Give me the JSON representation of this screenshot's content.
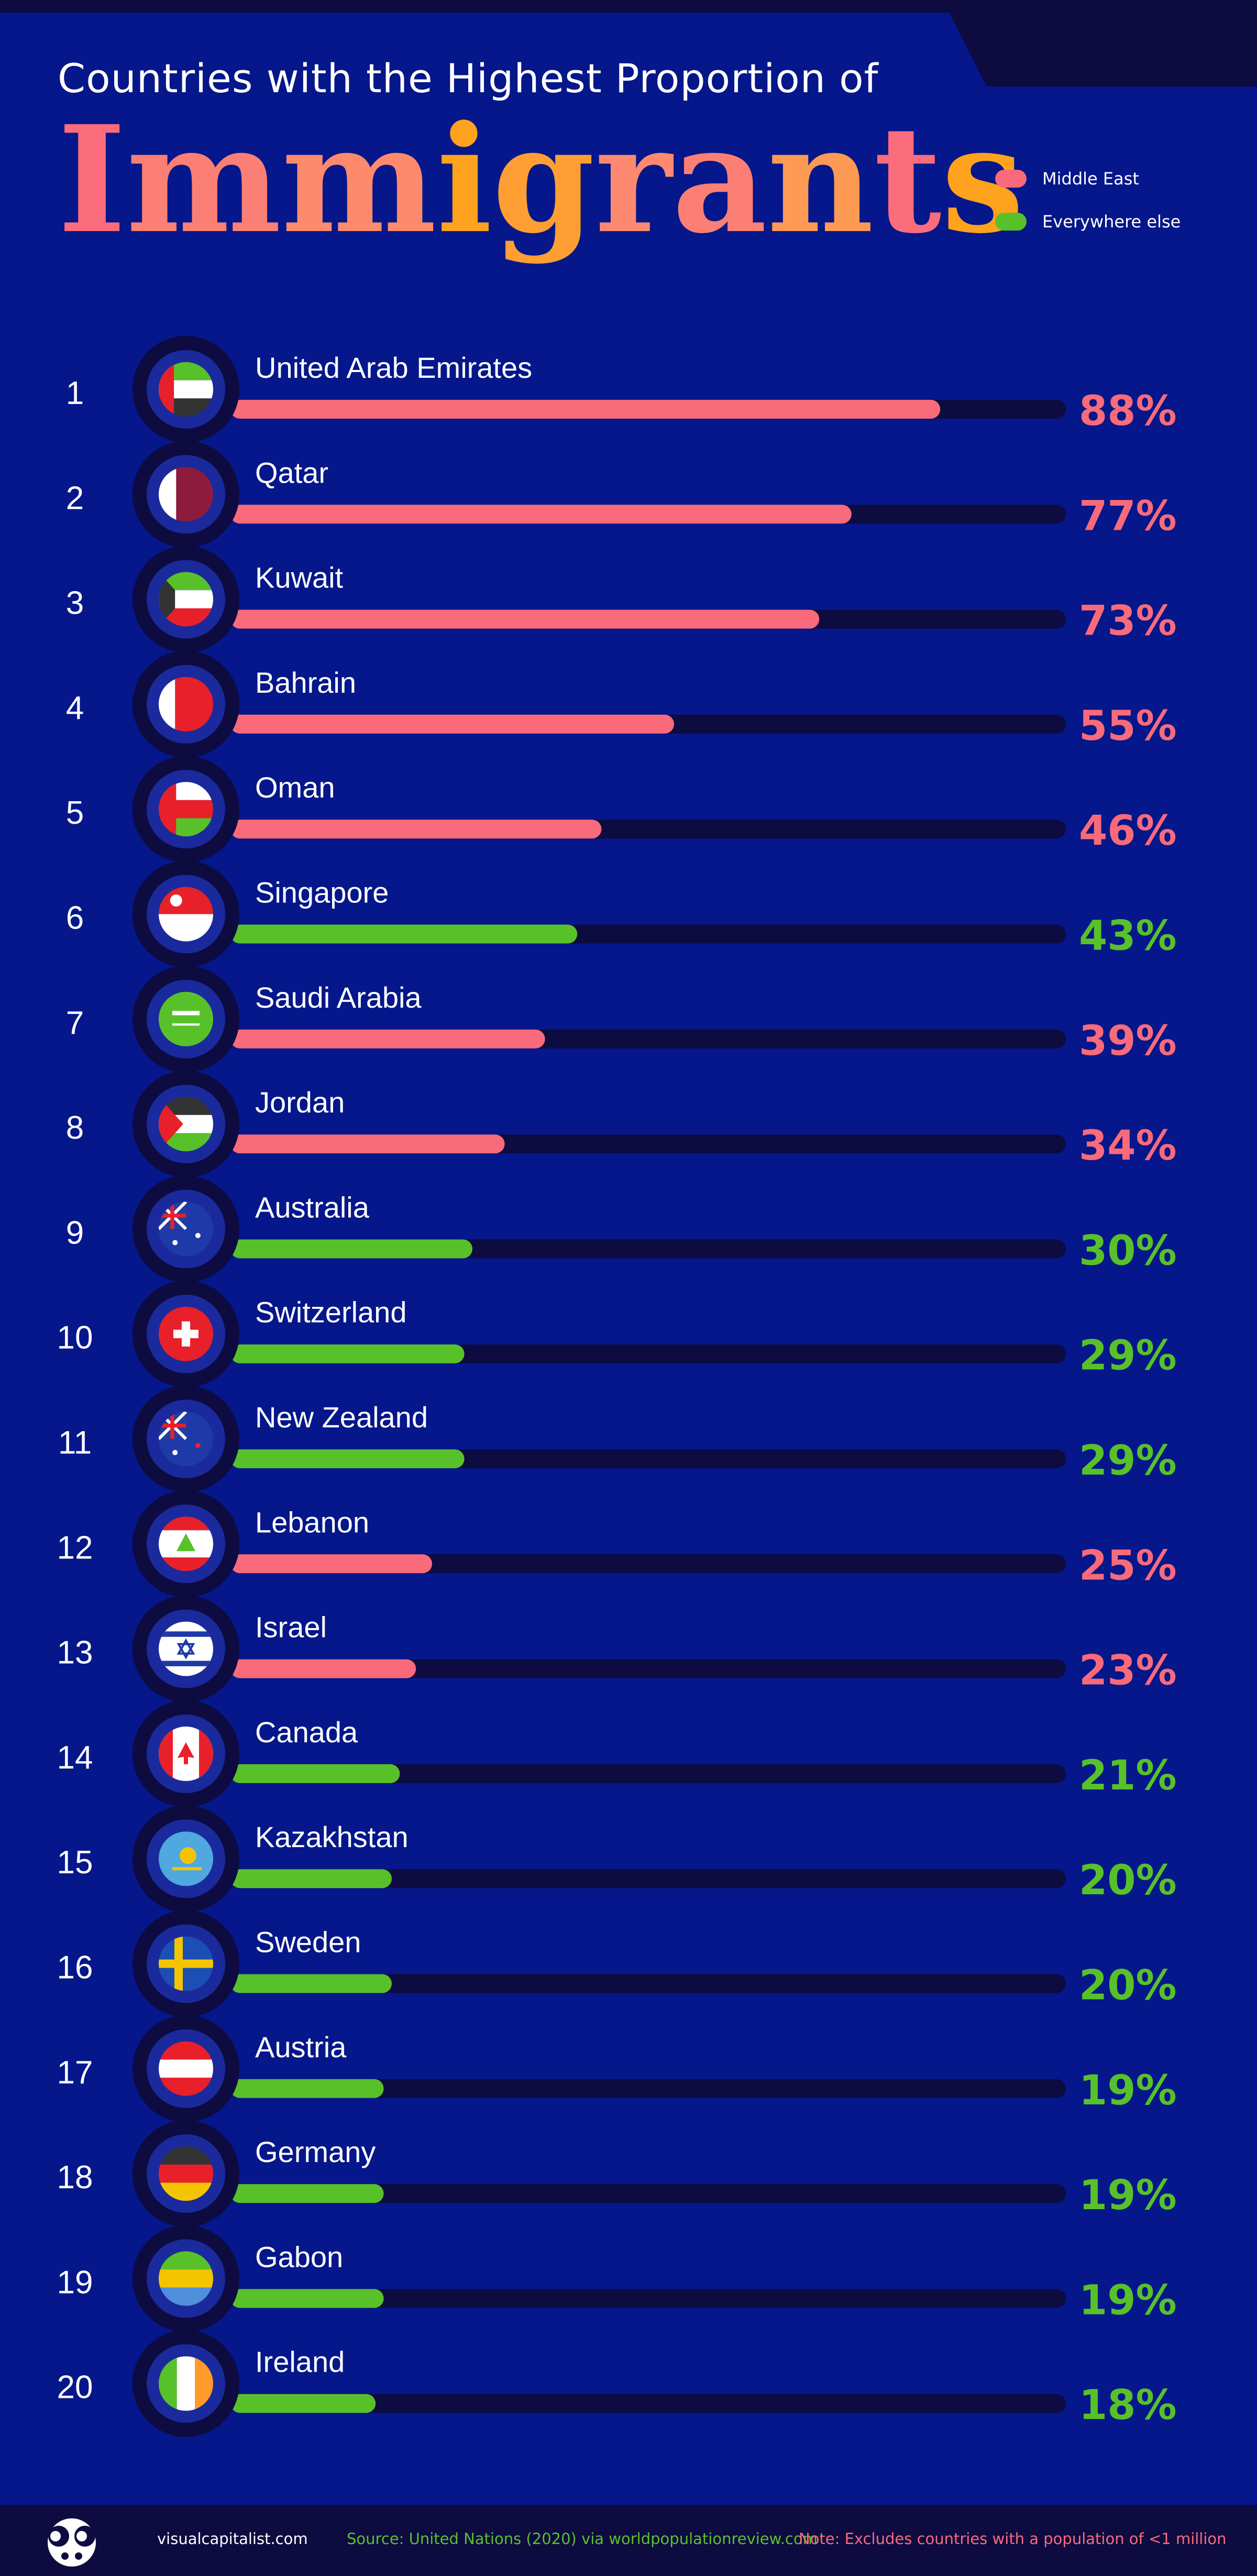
{
  "header": {
    "subtitle": "Countries with the Highest Proportion of",
    "title_letters": [
      "I",
      "m",
      "m",
      "i",
      "g",
      "r",
      "a",
      "n",
      "t",
      "s"
    ],
    "title_colors": [
      "#fb6c7c",
      "#fb7f74",
      "#fd8a6c",
      "#ffa21d",
      "#ff9e33",
      "#fd8a70",
      "#fb7f74",
      "#ff9a55",
      "#fb6c7c",
      "#ffa21d"
    ]
  },
  "legend": [
    {
      "label": "Middle East",
      "color": "#f96a7b"
    },
    {
      "label": "Everywhere else",
      "color": "#58c12a"
    }
  ],
  "colors": {
    "middle_east": "#f96a7b",
    "everywhere_else": "#58c12a",
    "track": "#0d0b40",
    "background": "#05178a"
  },
  "chart_data": {
    "type": "bar",
    "title": "Countries with the Highest Proportion of Immigrants",
    "xlim": [
      0,
      100
    ],
    "categories": [
      "United Arab Emirates",
      "Qatar",
      "Kuwait",
      "Bahrain",
      "Oman",
      "Singapore",
      "Saudi Arabia",
      "Jordan",
      "Australia",
      "Switzerland",
      "New Zealand",
      "Lebanon",
      "Israel",
      "Canada",
      "Kazakhstan",
      "Sweden",
      "Austria",
      "Germany",
      "Gabon",
      "Ireland"
    ],
    "values": [
      88,
      77,
      73,
      55,
      46,
      43,
      39,
      34,
      30,
      29,
      29,
      25,
      23,
      21,
      20,
      20,
      19,
      19,
      19,
      18
    ],
    "labels": [
      "88%",
      "77%",
      "73%",
      "55%",
      "46%",
      "43%",
      "39%",
      "34%",
      "30%",
      "29%",
      "29%",
      "25%",
      "23%",
      "21%",
      "20%",
      "20%",
      "19%",
      "19%",
      "19%",
      "18%"
    ],
    "ranks": [
      "1",
      "2",
      "3",
      "4",
      "5",
      "6",
      "7",
      "8",
      "9",
      "10",
      "11",
      "12",
      "13",
      "14",
      "15",
      "16",
      "17",
      "18",
      "19",
      "20"
    ],
    "groups": [
      "Middle East",
      "Middle East",
      "Middle East",
      "Middle East",
      "Middle East",
      "Everywhere else",
      "Middle East",
      "Middle East",
      "Everywhere else",
      "Everywhere else",
      "Everywhere else",
      "Middle East",
      "Middle East",
      "Everywhere else",
      "Everywhere else",
      "Everywhere else",
      "Everywhere else",
      "Everywhere else",
      "Everywhere else",
      "Everywhere else"
    ],
    "flags": [
      "uae-flag-icon",
      "qatar-flag-icon",
      "kuwait-flag-icon",
      "bahrain-flag-icon",
      "oman-flag-icon",
      "singapore-flag-icon",
      "saudi-arabia-flag-icon",
      "jordan-flag-icon",
      "australia-flag-icon",
      "switzerland-flag-icon",
      "new-zealand-flag-icon",
      "lebanon-flag-icon",
      "israel-flag-icon",
      "canada-flag-icon",
      "kazakhstan-flag-icon",
      "sweden-flag-icon",
      "austria-flag-icon",
      "germany-flag-icon",
      "gabon-flag-icon",
      "ireland-flag-icon"
    ]
  },
  "footer": {
    "brand": "visualcapitalist.com",
    "source": "Source: United Nations (2020) via worldpopulationreview.com",
    "note": "Note: Excludes countries with a population of <1 million",
    "source_color": "#58c12a",
    "note_color": "#f96a7b"
  }
}
